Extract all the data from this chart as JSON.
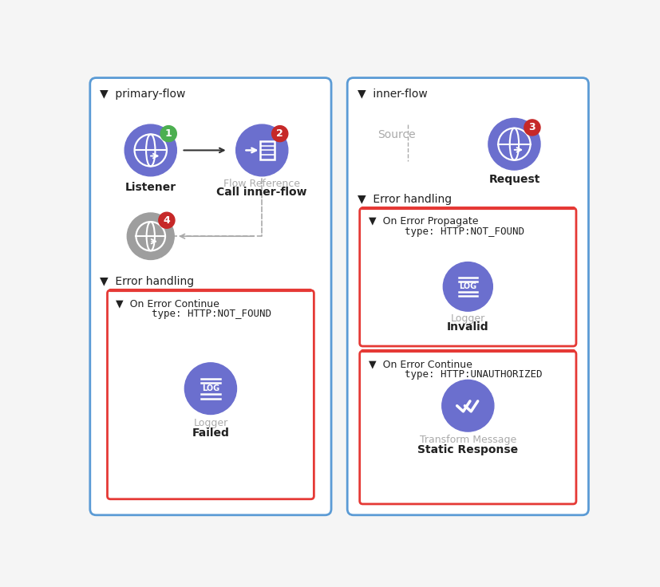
{
  "bg_color": "#f5f5f5",
  "panel_bg": "#ffffff",
  "border_color": "#5b9bd5",
  "blue_node": "#6b6fce",
  "gray_node": "#9e9e9e",
  "green_badge": "#4caf50",
  "red_badge": "#c62828",
  "badge_text": "#ffffff",
  "error_border": "#e53935",
  "arrow_color": "#333333",
  "dashed_color": "#aaaaaa",
  "text_dark": "#212121",
  "text_gray": "#aaaaaa",
  "primary_flow_title": "primary-flow",
  "inner_flow_title": "inner-flow",
  "listener_label": "Listener",
  "flow_ref_gray": "Flow Reference",
  "flow_ref_bold": "Call inner-flow",
  "source_label": "Source",
  "request_label": "Request",
  "error_handling": "Error handling",
  "left_err_line1": "On Error Continue",
  "left_err_line2": "type: HTTP:NOT_FOUND",
  "left_logger_type": "Logger",
  "left_logger_name": "Failed",
  "right_err1_line1": "On Error Propagate",
  "right_err1_line2": "type: HTTP:NOT_FOUND",
  "right_logger1_type": "Logger",
  "right_logger1_name": "Invalid",
  "right_err2_line1": "On Error Continue",
  "right_err2_line2": "type: HTTP:UNAUTHORIZED",
  "right_tm_type": "Transform Message",
  "right_tm_name": "Static Response",
  "figw": 8.28,
  "figh": 7.36,
  "dpi": 100
}
